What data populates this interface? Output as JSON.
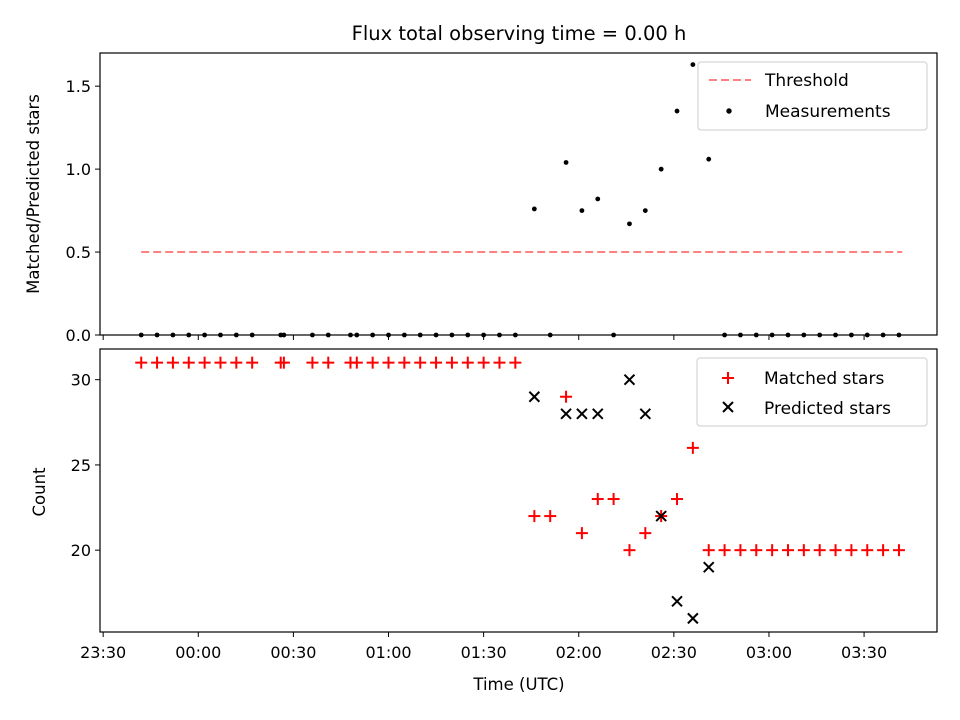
{
  "title": "Flux total observing time = 0.00 h",
  "colors": {
    "threshold": "#ff8080",
    "measurement": "#000000",
    "matched": "#ff0000",
    "predicted": "#000000",
    "frame": "#000000",
    "background": "#ffffff"
  },
  "chart_data": [
    {
      "type": "scatter",
      "ylabel": "Matched/Predicted stars",
      "xlabel": "",
      "ylim": [
        0,
        1.7
      ],
      "yticks": [
        0.0,
        0.5,
        1.0,
        1.5
      ],
      "ytick_labels": [
        "0.0",
        "0.5",
        "1.0",
        "1.5"
      ],
      "grid": false,
      "legend_loc": "upper right",
      "series": [
        {
          "name": "Threshold",
          "style": "dashed-line",
          "x": [
            "23:42",
            "03:42"
          ],
          "y": [
            0.5,
            0.5
          ]
        },
        {
          "name": "Measurements",
          "style": "dot",
          "x": [
            "23:42",
            "23:47",
            "23:52",
            "23:57",
            "00:02",
            "00:07",
            "00:12",
            "00:17",
            "00:26",
            "00:27",
            "00:36",
            "00:41",
            "00:48",
            "00:50",
            "00:55",
            "01:00",
            "01:05",
            "01:10",
            "01:15",
            "01:20",
            "01:25",
            "01:30",
            "01:35",
            "01:40",
            "01:46",
            "01:51",
            "01:56",
            "02:01",
            "02:06",
            "02:11",
            "02:16",
            "02:21",
            "02:26",
            "02:31",
            "02:36",
            "02:41",
            "02:46",
            "02:51",
            "02:56",
            "03:01",
            "03:06",
            "03:11",
            "03:16",
            "03:21",
            "03:26",
            "03:31",
            "03:36",
            "03:41"
          ],
          "y": [
            0,
            0,
            0,
            0,
            0,
            0,
            0,
            0,
            0,
            0,
            0,
            0,
            0,
            0,
            0,
            0,
            0,
            0,
            0,
            0,
            0,
            0,
            0,
            0,
            0.76,
            0,
            1.04,
            0.75,
            0.82,
            0,
            0.67,
            0.75,
            1.0,
            1.35,
            1.63,
            1.06,
            0,
            0,
            0,
            0,
            0,
            0,
            0,
            0,
            0,
            0,
            0,
            0
          ]
        }
      ]
    },
    {
      "type": "scatter",
      "ylabel": "Count",
      "xlabel": "Time (UTC)",
      "ylim": [
        15.2,
        31.8
      ],
      "yticks": [
        20,
        25,
        30
      ],
      "ytick_labels": [
        "20",
        "25",
        "30"
      ],
      "xlim": [
        "23:29",
        "03:53"
      ],
      "xticks": [
        "23:30",
        "00:00",
        "00:30",
        "01:00",
        "01:30",
        "02:00",
        "02:30",
        "03:00",
        "03:30"
      ],
      "grid": false,
      "legend_loc": "upper right",
      "series": [
        {
          "name": "Matched stars",
          "marker": "plus",
          "x": [
            "23:42",
            "23:47",
            "23:52",
            "23:57",
            "00:02",
            "00:07",
            "00:12",
            "00:17",
            "00:26",
            "00:27",
            "00:36",
            "00:41",
            "00:48",
            "00:50",
            "00:55",
            "01:00",
            "01:05",
            "01:10",
            "01:15",
            "01:20",
            "01:25",
            "01:30",
            "01:35",
            "01:40",
            "01:46",
            "01:51",
            "01:56",
            "02:01",
            "02:06",
            "02:11",
            "02:16",
            "02:21",
            "02:26",
            "02:31",
            "02:36",
            "02:41",
            "02:46",
            "02:51",
            "02:56",
            "03:01",
            "03:06",
            "03:11",
            "03:16",
            "03:21",
            "03:26",
            "03:31",
            "03:36",
            "03:41"
          ],
          "y": [
            31,
            31,
            31,
            31,
            31,
            31,
            31,
            31,
            31,
            31,
            31,
            31,
            31,
            31,
            31,
            31,
            31,
            31,
            31,
            31,
            31,
            31,
            31,
            31,
            22,
            22,
            29,
            21,
            23,
            23,
            20,
            21,
            22,
            23,
            26,
            20,
            20,
            20,
            20,
            20,
            20,
            20,
            20,
            20,
            20,
            20,
            20,
            20
          ]
        },
        {
          "name": "Predicted stars",
          "marker": "x",
          "x": [
            "01:46",
            "01:56",
            "02:01",
            "02:06",
            "02:16",
            "02:21",
            "02:26",
            "02:31",
            "02:36",
            "02:41"
          ],
          "y": [
            29,
            28,
            28,
            28,
            30,
            28,
            22,
            17,
            16,
            19
          ]
        }
      ]
    }
  ]
}
